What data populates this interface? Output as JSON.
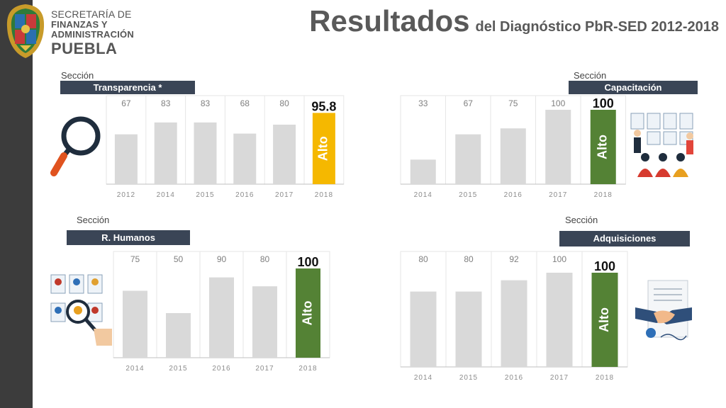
{
  "header": {
    "agency_line1": "SECRETARÍA DE",
    "agency_line2": "FINANZAS Y",
    "agency_line3": "ADMINISTRACIÓN",
    "agency_line4": "PUEBLA",
    "title_main": "Resultados",
    "title_sub": "del Diagnóstico PbR-SED 2012-2018"
  },
  "colors": {
    "sidebar": "#3c3c3c",
    "badge": "#3a4556",
    "bar_gray": "#d9d9d9",
    "bar_gold": "#f5b800",
    "bar_green": "#548235"
  },
  "panels": {
    "transparencia": {
      "seccion": "Sección",
      "name": "Transparencia *",
      "icon": "magnifying-glass-icon"
    },
    "capacitacion": {
      "seccion": "Sección",
      "name": "Capacitación",
      "icon": "training-class-icon"
    },
    "humanos": {
      "seccion": "Sección",
      "name": "R. Humanos",
      "icon": "candidate-search-icon"
    },
    "adquisiciones": {
      "seccion": "Sección",
      "name": "Adquisiciones",
      "icon": "handshake-contract-icon"
    }
  },
  "chart_data": [
    {
      "type": "bar",
      "title": "Transparencia *",
      "categories": [
        "2012",
        "2014",
        "2015",
        "2016",
        "2017",
        "2018"
      ],
      "values": [
        67,
        83,
        83,
        68,
        80,
        95.8
      ],
      "labels": [
        "67",
        "83",
        "83",
        "68",
        "80",
        "95.8"
      ],
      "highlight": {
        "index": 5,
        "text": "Alto",
        "color": "#f5b800"
      },
      "ylim": [
        0,
        100
      ]
    },
    {
      "type": "bar",
      "title": "Capacitación",
      "categories": [
        "2014",
        "2015",
        "2016",
        "2017",
        "2018"
      ],
      "values": [
        33,
        67,
        75,
        100,
        100
      ],
      "labels": [
        "33",
        "67",
        "75",
        "100",
        "100"
      ],
      "highlight": {
        "index": 4,
        "text": "Alto",
        "color": "#548235"
      },
      "ylim": [
        0,
        100
      ]
    },
    {
      "type": "bar",
      "title": "R. Humanos",
      "categories": [
        "2014",
        "2015",
        "2016",
        "2017",
        "2018"
      ],
      "values": [
        75,
        50,
        90,
        80,
        100
      ],
      "labels": [
        "75",
        "50",
        "90",
        "80",
        "100"
      ],
      "highlight": {
        "index": 4,
        "text": "Alto",
        "color": "#548235"
      },
      "ylim": [
        0,
        100
      ]
    },
    {
      "type": "bar",
      "title": "Adquisiciones",
      "categories": [
        "2014",
        "2015",
        "2016",
        "2017",
        "2018"
      ],
      "values": [
        80,
        80,
        92,
        100,
        100
      ],
      "labels": [
        "80",
        "80",
        "92",
        "100",
        "100"
      ],
      "highlight": {
        "index": 4,
        "text": "Alto",
        "color": "#548235"
      },
      "ylim": [
        0,
        100
      ]
    }
  ]
}
